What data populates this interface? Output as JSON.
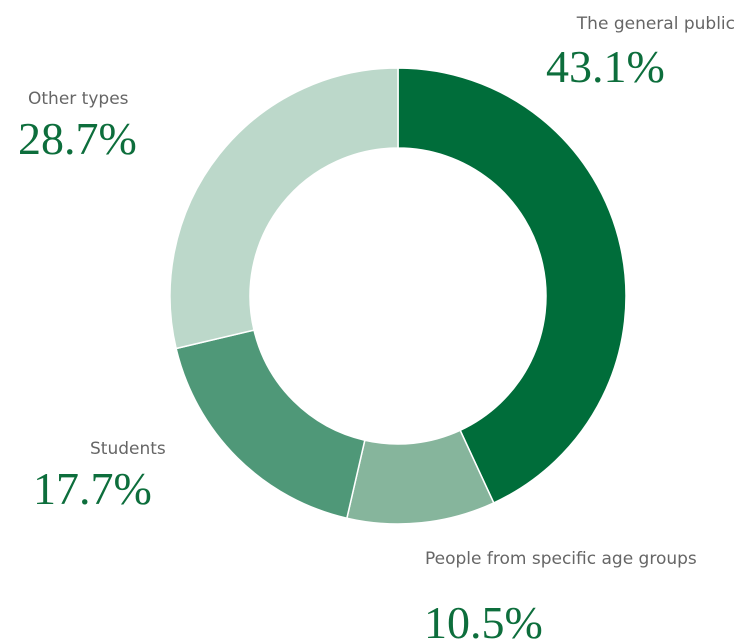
{
  "chart_data": {
    "type": "donut",
    "categories": [
      "The general public",
      "People from specific age groups",
      "Students",
      "Other types"
    ],
    "values": [
      43.1,
      10.5,
      17.7,
      28.7
    ],
    "value_labels": [
      "43.1%",
      "10.5%",
      "17.7%",
      "28.7%"
    ],
    "colors": [
      "#006d3a",
      "#86b59c",
      "#4f9878",
      "#bcd8ca"
    ]
  }
}
